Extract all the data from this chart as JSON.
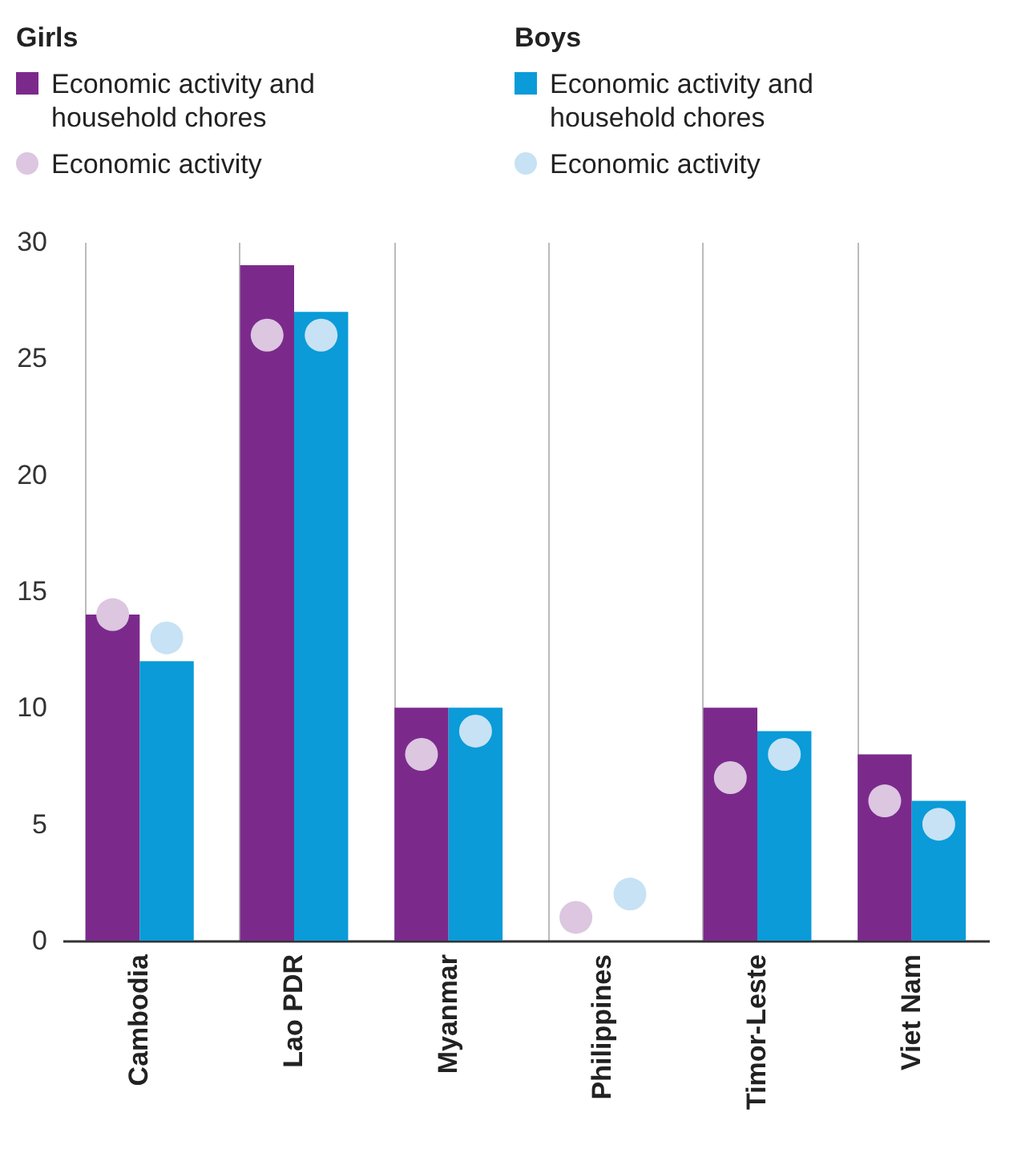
{
  "chart_data": {
    "type": "bar",
    "categories": [
      "Cambodia",
      "Lao PDR",
      "Myanmar",
      "Philippines",
      "Timor-Leste",
      "Viet Nam"
    ],
    "series": [
      {
        "name": "Economic activity and household chores",
        "color": "#7b2a8c",
        "values": [
          14,
          29,
          10,
          0,
          10,
          8
        ]
      },
      {
        "name": "Economic activity and household chores",
        "color": "#0a9bd8",
        "values": [
          12,
          27,
          10,
          0,
          9,
          6
        ]
      },
      {
        "type": "scatter",
        "name": "Economic activity",
        "color": "#dcc6e0",
        "x": [
          "Cambodia",
          "Lao PDR",
          "Myanmar",
          "Philippines",
          "Timor-Leste",
          "Viet Nam"
        ],
        "values": [
          14,
          26,
          8,
          1,
          7,
          6
        ]
      },
      {
        "type": "scatter",
        "name": "Economic activity",
        "color": "#c7e2f4",
        "x": [
          "Cambodia",
          "Lao PDR",
          "Myanmar",
          "Philippines",
          "Timor-Leste",
          "Viet Nam"
        ],
        "values": [
          13,
          26,
          9,
          2,
          8,
          5
        ]
      }
    ],
    "annotations": [
      "Girls",
      "Boys"
    ],
    "ylim": [
      0,
      30
    ],
    "yticks": [
      0,
      5,
      10,
      15,
      20,
      25,
      30
    ],
    "grid": "x",
    "legend": "top",
    "marker": "circle"
  }
}
